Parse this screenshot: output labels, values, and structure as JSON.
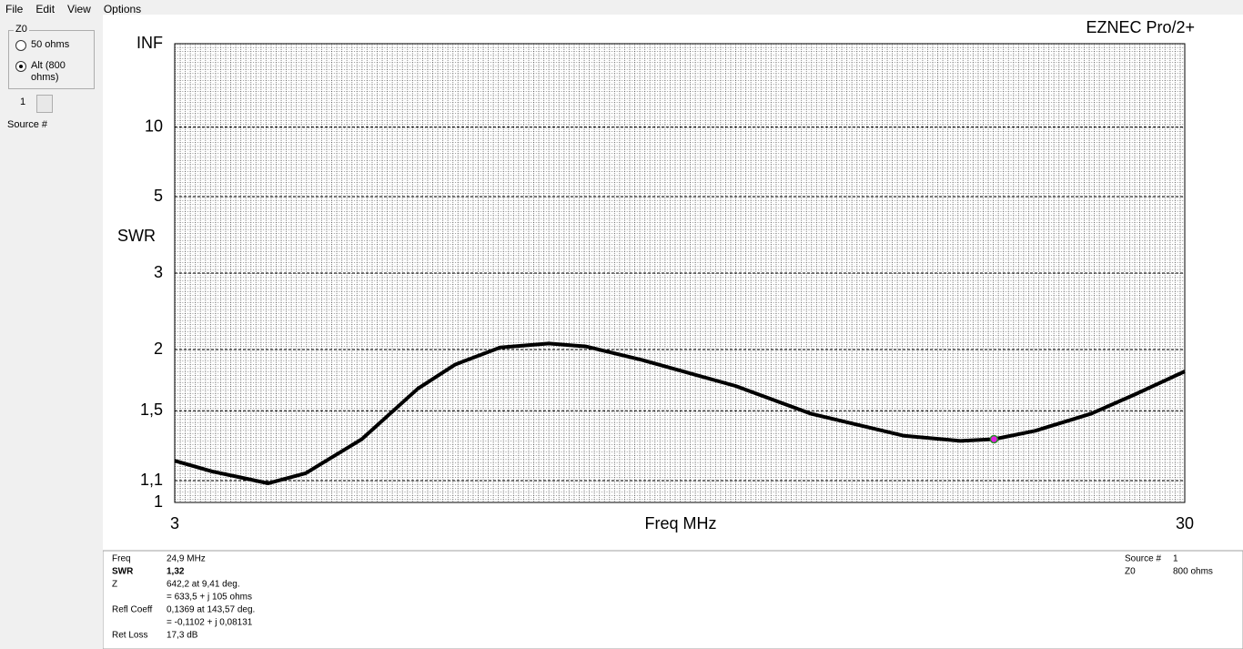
{
  "menu": [
    "File",
    "Edit",
    "View",
    "Options"
  ],
  "z0_panel": {
    "title": "Z0",
    "options": [
      "50 ohms",
      "Alt (800 ohms)"
    ],
    "selected": 1,
    "source_number": "1",
    "source_label": "Source #"
  },
  "chart_data": {
    "type": "line",
    "title": "EZNEC Pro/2+",
    "x_label": "Freq MHz",
    "y_label": "SWR",
    "y_scale": "reflection",
    "x": [
      3,
      4,
      5.5,
      6.5,
      8,
      9.5,
      10.5,
      11.7,
      13,
      14,
      15.5,
      18,
      20,
      22.5,
      24,
      24.9,
      26,
      27.5,
      28.7,
      30
    ],
    "values": [
      1.2,
      1.145,
      1.087,
      1.136,
      1.32,
      1.66,
      1.86,
      2.02,
      2.06,
      2.03,
      1.9,
      1.68,
      1.48,
      1.34,
      1.31,
      1.32,
      1.37,
      1.48,
      1.62,
      1.8
    ],
    "color": "#000000",
    "marker": {
      "x": 24.9,
      "value": 1.32,
      "color": "#e020e0"
    },
    "xlim": [
      3,
      30
    ],
    "xticks": [
      3,
      30
    ],
    "ylim": [
      1,
      null
    ],
    "yticks": [
      1,
      {
        "value": 1.1,
        "label": "1,1"
      },
      {
        "value": 1.5,
        "label": "1,5"
      },
      2,
      3,
      5,
      10,
      {
        "value": null,
        "label": "INF"
      }
    ],
    "grid": true
  },
  "info": {
    "left": [
      {
        "label": "Freq",
        "value": "24,9 MHz"
      },
      {
        "label": "SWR",
        "value": "1,32"
      },
      {
        "label": "Z",
        "value": "642,2 at 9,41 deg."
      },
      {
        "value": "= 633,5 + j 105 ohms"
      },
      {
        "label": "Refl Coeff",
        "value": "0,1369 at 143,57 deg."
      },
      {
        "value": "= -0,1102 + j 0,08131"
      },
      {
        "label": "Ret Loss",
        "value": "17,3 dB"
      }
    ],
    "right": [
      {
        "label": "Source #",
        "value": "1"
      },
      {
        "label": "Z0",
        "value": "800 ohms"
      }
    ]
  }
}
